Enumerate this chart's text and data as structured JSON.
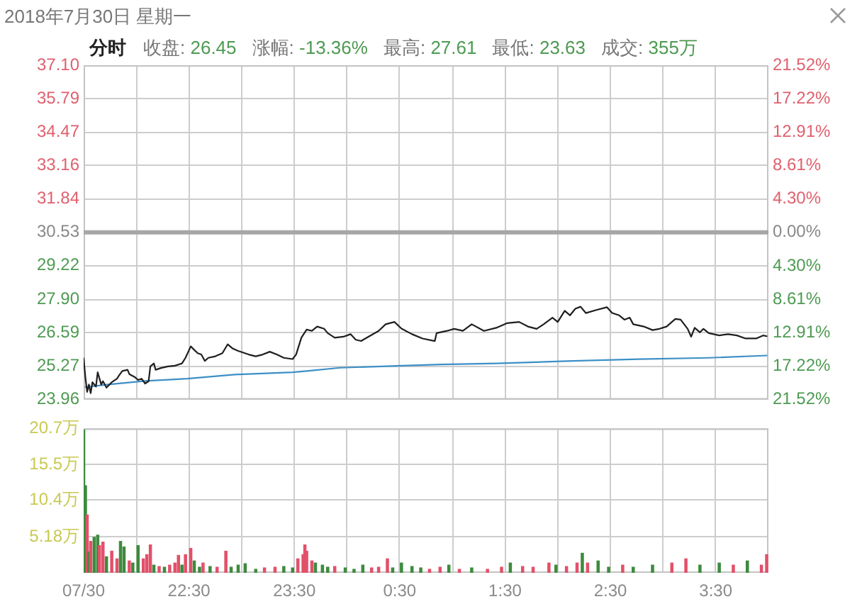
{
  "chart_data": [
    {
      "type": "line",
      "title": "2018年7月30日 星期一",
      "subtitle": "分时",
      "annotations": [
        "收盘: 26.45",
        "涨幅: -13.36%",
        "最高: 27.61",
        "最低: 23.63",
        "成交: 355万"
      ],
      "xlim": [
        "2018-07-30T21:30",
        "2018-07-31T04:00"
      ],
      "xticks": [
        {
          "value": "2018-07-30T21:30",
          "label": null
        },
        {
          "value": "2018-07-30T22:00",
          "label": null
        },
        {
          "value": "2018-07-30T22:30",
          "label": null
        },
        {
          "value": "2018-07-30T23:00",
          "label": null
        },
        {
          "value": "2018-07-30T23:30",
          "label": null
        },
        {
          "value": "2018-07-31T00:00",
          "label": null
        },
        {
          "value": "2018-07-31T00:30",
          "label": null
        },
        {
          "value": "2018-07-31T01:00",
          "label": null
        },
        {
          "value": "2018-07-31T01:30",
          "label": null
        },
        {
          "value": "2018-07-31T02:00",
          "label": null
        },
        {
          "value": "2018-07-31T02:30",
          "label": null
        },
        {
          "value": "2018-07-31T03:00",
          "label": null
        },
        {
          "value": "2018-07-31T03:30",
          "label": null
        }
      ],
      "ylim": [
        23.96,
        37.1
      ],
      "yticks": [
        {
          "value": 37.1,
          "label": "37.10"
        },
        35.79,
        34.47,
        33.16,
        31.84,
        30.53,
        29.22,
        {
          "value": 27.9,
          "label": "27.90"
        },
        26.59,
        25.27,
        23.96
      ],
      "y2lim": [
        -21.52,
        21.52
      ],
      "y2ticks": [
        {
          "value": 21.52,
          "label": "21.52%"
        },
        {
          "value": 17.22,
          "label": "17.22%"
        },
        {
          "value": 12.91,
          "label": "12.91%"
        },
        {
          "value": 8.61,
          "label": "8.61%"
        },
        {
          "value": 4.3,
          "label": "4.30%"
        },
        {
          "value": 0,
          "label": "0.00%"
        },
        {
          "value": -4.3,
          "label": "4.30%"
        },
        {
          "value": -8.61,
          "label": "8.61%"
        },
        {
          "value": -12.91,
          "label": "12.91%"
        },
        {
          "value": -17.22,
          "label": "17.22%"
        },
        {
          "value": -21.52,
          "label": "21.52%"
        }
      ],
      "ref_lines": [
        {
          "axis": "y",
          "value": 30.53,
          "color": "#a6a6a6"
        }
      ],
      "grid": true,
      "marker": "none",
      "tick_labels": "y",
      "series": [
        {
          "type": "line",
          "color": "#1f1f1f",
          "x": [
            "2018-07-30T21:30",
            "2018-07-30T21:31",
            "2018-07-30T21:32",
            "2018-07-30T21:33",
            "2018-07-30T21:34",
            "2018-07-30T21:35",
            "2018-07-30T21:37",
            "2018-07-30T21:38",
            "2018-07-30T21:40",
            "2018-07-30T21:41",
            "2018-07-30T21:43",
            "2018-07-30T21:46",
            "2018-07-30T21:49",
            "2018-07-30T21:50",
            "2018-07-30T21:52",
            "2018-07-30T21:55",
            "2018-07-30T21:56",
            "2018-07-30T21:59",
            "2018-07-30T22:01",
            "2018-07-30T22:03",
            "2018-07-30T22:05",
            "2018-07-30T22:07",
            "2018-07-30T22:08",
            "2018-07-30T22:10",
            "2018-07-30T22:11",
            "2018-07-30T22:14",
            "2018-07-30T22:18",
            "2018-07-30T22:22",
            "2018-07-30T22:26",
            "2018-07-30T22:28",
            "2018-07-30T22:31",
            "2018-07-30T22:33",
            "2018-07-30T22:35",
            "2018-07-30T22:37",
            "2018-07-30T22:39",
            "2018-07-30T22:41",
            "2018-07-30T22:45",
            "2018-07-30T22:49",
            "2018-07-30T22:52",
            "2018-07-30T22:55",
            "2018-07-30T22:58",
            "2018-07-30T23:04",
            "2018-07-30T23:08",
            "2018-07-30T23:12",
            "2018-07-30T23:16",
            "2018-07-30T23:20",
            "2018-07-30T23:24",
            "2018-07-30T23:29",
            "2018-07-30T23:31",
            "2018-07-30T23:34",
            "2018-07-30T23:37",
            "2018-07-30T23:40",
            "2018-07-30T23:43",
            "2018-07-30T23:47",
            "2018-07-30T23:49",
            "2018-07-30T23:53",
            "2018-07-30T23:58",
            "2018-07-31T00:02",
            "2018-07-31T00:05",
            "2018-07-31T00:08",
            "2018-07-31T00:18",
            "2018-07-31T00:22",
            "2018-07-31T00:27",
            "2018-07-31T00:31",
            "2018-07-31T00:37",
            "2018-07-31T00:43",
            "2018-07-31T00:50",
            "2018-07-31T00:51",
            "2018-07-31T00:57",
            "2018-07-31T01:01",
            "2018-07-31T01:06",
            "2018-07-31T01:11",
            "2018-07-31T01:18",
            "2018-07-31T01:25",
            "2018-07-31T01:31",
            "2018-07-31T01:38",
            "2018-07-31T01:43",
            "2018-07-31T01:48",
            "2018-07-31T01:52",
            "2018-07-31T01:57",
            "2018-07-31T02:00",
            "2018-07-31T02:04",
            "2018-07-31T02:07",
            "2018-07-31T02:10",
            "2018-07-31T02:13",
            "2018-07-31T02:16",
            "2018-07-31T02:22",
            "2018-07-31T02:28",
            "2018-07-31T02:31",
            "2018-07-31T02:35",
            "2018-07-31T02:38",
            "2018-07-31T02:41",
            "2018-07-31T02:43",
            "2018-07-31T02:49",
            "2018-07-31T02:54",
            "2018-07-31T02:58",
            "2018-07-31T03:02",
            "2018-07-31T03:07",
            "2018-07-31T03:10",
            "2018-07-31T03:14",
            "2018-07-31T03:16",
            "2018-07-31T03:18",
            "2018-07-31T03:21",
            "2018-07-31T03:23",
            "2018-07-31T03:26",
            "2018-07-31T03:32",
            "2018-07-31T03:37",
            "2018-07-31T03:42",
            "2018-07-31T03:47",
            "2018-07-31T03:53",
            "2018-07-31T03:57",
            "2018-07-31T03:59"
          ],
          "values": [
            25.58,
            24.82,
            24.26,
            24.55,
            24.21,
            24.64,
            24.47,
            25.03,
            24.55,
            24.68,
            24.43,
            24.64,
            24.78,
            24.89,
            25.08,
            25.13,
            24.96,
            24.85,
            24.73,
            24.78,
            24.59,
            24.68,
            25.26,
            25.38,
            25.13,
            25.2,
            25.26,
            25.29,
            25.38,
            25.6,
            26.05,
            25.91,
            25.78,
            25.73,
            25.48,
            25.6,
            25.66,
            25.78,
            26.13,
            25.96,
            25.87,
            25.73,
            25.66,
            25.73,
            25.84,
            25.73,
            25.6,
            25.55,
            25.73,
            26.39,
            26.71,
            26.66,
            26.83,
            26.74,
            26.57,
            26.39,
            26.43,
            26.53,
            26.31,
            26.26,
            26.66,
            26.92,
            27.01,
            26.75,
            26.53,
            26.36,
            26.26,
            26.57,
            26.66,
            26.74,
            26.66,
            26.92,
            26.66,
            26.78,
            26.96,
            27.01,
            26.83,
            26.74,
            26.92,
            27.18,
            27.01,
            27.45,
            27.27,
            27.53,
            27.61,
            27.36,
            27.48,
            27.59,
            27.36,
            27.27,
            27.1,
            27.18,
            26.92,
            26.83,
            26.69,
            26.74,
            26.83,
            27.13,
            27.1,
            26.74,
            26.43,
            26.78,
            26.6,
            26.74,
            26.57,
            26.48,
            26.53,
            26.48,
            26.36,
            26.36,
            26.48,
            26.45
          ]
        },
        {
          "type": "line",
          "color": "#3d8fc6",
          "x": [
            "2018-07-30T21:31",
            "2018-07-30T21:44",
            "2018-07-30T22:05",
            "2018-07-30T22:29",
            "2018-07-30T22:56",
            "2018-07-30T23:29",
            "2018-07-30T23:37",
            "2018-07-30T23:56",
            "2018-07-31T00:31",
            "2018-07-31T00:53",
            "2018-07-31T01:25",
            "2018-07-31T02:05",
            "2018-07-31T02:46",
            "2018-07-31T03:26",
            "2018-07-31T03:59"
          ],
          "values": [
            24.45,
            24.55,
            24.69,
            24.78,
            24.94,
            25.03,
            25.08,
            25.21,
            25.29,
            25.34,
            25.38,
            25.47,
            25.55,
            25.6,
            25.69
          ]
        }
      ]
    },
    {
      "type": "bar",
      "xlim": [
        "2018-07-30T21:30",
        "2018-07-31T04:00"
      ],
      "xticks": [
        {
          "value": "2018-07-30T21:30",
          "label": "07/30"
        },
        {
          "value": "2018-07-30T22:00",
          "label": null
        },
        {
          "value": "2018-07-30T22:30",
          "label": "22:30"
        },
        {
          "value": "2018-07-30T23:00",
          "label": null
        },
        {
          "value": "2018-07-30T23:30",
          "label": "23:30"
        },
        {
          "value": "2018-07-31T00:00",
          "label": null
        },
        {
          "value": "2018-07-31T00:30",
          "label": "0:30"
        },
        {
          "value": "2018-07-31T01:00",
          "label": null
        },
        {
          "value": "2018-07-31T01:30",
          "label": "1:30"
        },
        {
          "value": "2018-07-31T02:00",
          "label": null
        },
        {
          "value": "2018-07-31T02:30",
          "label": "2:30"
        },
        {
          "value": "2018-07-31T03:00",
          "label": null
        },
        {
          "value": "2018-07-31T03:30",
          "label": "3:30"
        }
      ],
      "ylim": [
        0,
        20.7
      ],
      "yticks": [
        {
          "value": 20.7,
          "label": "20.7万"
        },
        {
          "value": 15.5,
          "label": "15.5万"
        },
        {
          "value": 10.4,
          "label": "10.4万"
        },
        {
          "value": 5.18,
          "label": "5.18万"
        }
      ],
      "grid": true,
      "x": [
        "2018-07-30T21:30",
        "2018-07-30T21:31",
        "2018-07-30T21:32",
        "2018-07-30T21:33",
        "2018-07-30T21:34",
        "2018-07-30T21:36",
        "2018-07-30T21:38",
        "2018-07-30T21:39",
        "2018-07-30T21:41",
        "2018-07-30T21:43",
        "2018-07-30T21:46",
        "2018-07-30T21:49",
        "2018-07-30T21:51",
        "2018-07-30T21:53",
        "2018-07-30T21:56",
        "2018-07-30T21:58",
        "2018-07-30T22:01",
        "2018-07-30T22:04",
        "2018-07-30T22:06",
        "2018-07-30T22:08",
        "2018-07-30T22:10",
        "2018-07-30T22:13",
        "2018-07-30T22:16",
        "2018-07-30T22:19",
        "2018-07-30T22:22",
        "2018-07-30T22:24",
        "2018-07-30T22:26",
        "2018-07-30T22:28",
        "2018-07-30T22:31",
        "2018-07-30T22:33",
        "2018-07-30T22:36",
        "2018-07-30T22:38",
        "2018-07-30T22:42",
        "2018-07-30T22:46",
        "2018-07-30T22:51",
        "2018-07-30T22:54",
        "2018-07-30T22:58",
        "2018-07-30T23:02",
        "2018-07-30T23:08",
        "2018-07-30T23:13",
        "2018-07-30T23:19",
        "2018-07-30T23:24",
        "2018-07-30T23:29",
        "2018-07-30T23:32",
        "2018-07-30T23:35",
        "2018-07-30T23:36",
        "2018-07-30T23:37",
        "2018-07-30T23:40",
        "2018-07-30T23:42",
        "2018-07-30T23:46",
        "2018-07-30T23:49",
        "2018-07-30T23:53",
        "2018-07-30T23:59",
        "2018-07-31T00:04",
        "2018-07-31T00:09",
        "2018-07-31T00:14",
        "2018-07-31T00:18",
        "2018-07-31T00:23",
        "2018-07-31T00:26",
        "2018-07-31T00:31",
        "2018-07-31T00:37",
        "2018-07-31T00:42",
        "2018-07-31T00:47",
        "2018-07-31T00:53",
        "2018-07-31T00:58",
        "2018-07-31T01:04",
        "2018-07-31T01:11",
        "2018-07-31T01:20",
        "2018-07-31T01:28",
        "2018-07-31T01:33",
        "2018-07-31T01:40",
        "2018-07-31T01:46",
        "2018-07-31T01:55",
        "2018-07-31T01:59",
        "2018-07-31T02:05",
        "2018-07-31T02:11",
        "2018-07-31T02:14",
        "2018-07-31T02:17",
        "2018-07-31T02:23",
        "2018-07-31T02:29",
        "2018-07-31T02:37",
        "2018-07-31T02:43",
        "2018-07-31T02:54",
        "2018-07-31T03:05",
        "2018-07-31T03:13",
        "2018-07-31T03:21",
        "2018-07-31T03:32",
        "2018-07-31T03:40",
        "2018-07-31T03:48",
        "2018-07-31T03:56",
        "2018-07-31T03:59"
      ],
      "values": [
        20.5,
        12.5,
        8.3,
        3.0,
        4.5,
        5.1,
        5.4,
        3.9,
        4.4,
        2.3,
        3.1,
        2.0,
        4.5,
        3.7,
        1.7,
        1.4,
        3.9,
        2.0,
        2.6,
        4.0,
        1.1,
        0.9,
        0.8,
        1.1,
        1.4,
        2.5,
        1.1,
        2.6,
        3.5,
        1.7,
        0.8,
        1.4,
        0.9,
        0.8,
        3.1,
        0.8,
        1.1,
        1.3,
        0.5,
        0.7,
        0.8,
        0.9,
        0.7,
        2.0,
        2.6,
        4.0,
        3.1,
        1.7,
        1.4,
        1.1,
        0.8,
        0.9,
        0.7,
        0.5,
        1.1,
        0.7,
        0.8,
        2.0,
        0.7,
        1.4,
        0.9,
        0.7,
        0.5,
        0.8,
        1.1,
        0.5,
        0.7,
        0.5,
        0.8,
        1.4,
        0.9,
        0.8,
        1.4,
        1.1,
        0.9,
        1.4,
        2.8,
        1.4,
        1.7,
        0.8,
        1.1,
        0.8,
        1.1,
        1.4,
        2.0,
        1.1,
        1.4,
        1.1,
        1.7,
        1.1,
        2.6
      ],
      "colors": [
        "#3e8a3e",
        "#3e8a3e",
        "#e2506a",
        "#3e8a3e",
        "#e2506a",
        "#3e8a3e",
        "#3e8a3e",
        "#e2506a",
        "#e2506a",
        "#3e8a3e",
        "#e2506a",
        "#e2506a",
        "#3e8a3e",
        "#3e8a3e",
        "#e2506a",
        "#3e8a3e",
        "#3e8a3e",
        "#e2506a",
        "#e2506a",
        "#e2506a",
        "#3e8a3e",
        "#e2506a",
        "#3e8a3e",
        "#e2506a",
        "#e2506a",
        "#e2506a",
        "#3e8a3e",
        "#e2506a",
        "#e2506a",
        "#3e8a3e",
        "#3e8a3e",
        "#e2506a",
        "#3e8a3e",
        "#e2506a",
        "#e2506a",
        "#3e8a3e",
        "#3e8a3e",
        "#3e8a3e",
        "#3e8a3e",
        "#e2506a",
        "#e2506a",
        "#3e8a3e",
        "#3e8a3e",
        "#e2506a",
        "#e2506a",
        "#e2506a",
        "#e2506a",
        "#e2506a",
        "#3e8a3e",
        "#3e8a3e",
        "#3e8a3e",
        "#e2506a",
        "#3e8a3e",
        "#3e8a3e",
        "#3e8a3e",
        "#e2506a",
        "#e2506a",
        "#e2506a",
        "#3e8a3e",
        "#3e8a3e",
        "#3e8a3e",
        "#3e8a3e",
        "#e2506a",
        "#e2506a",
        "#3e8a3e",
        "#e2506a",
        "#3e8a3e",
        "#e2506a",
        "#e2506a",
        "#3e8a3e",
        "#e2506a",
        "#e2506a",
        "#e2506a",
        "#3e8a3e",
        "#e2506a",
        "#e2506a",
        "#3e8a3e",
        "#e2506a",
        "#3e8a3e",
        "#3e8a3e",
        "#e2506a",
        "#3e8a3e",
        "#3e8a3e",
        "#e2506a",
        "#e2506a",
        "#3e8a3e",
        "#3e8a3e",
        "#e2506a",
        "#3e8a3e",
        "#e2506a",
        "#e2506a"
      ]
    }
  ]
}
